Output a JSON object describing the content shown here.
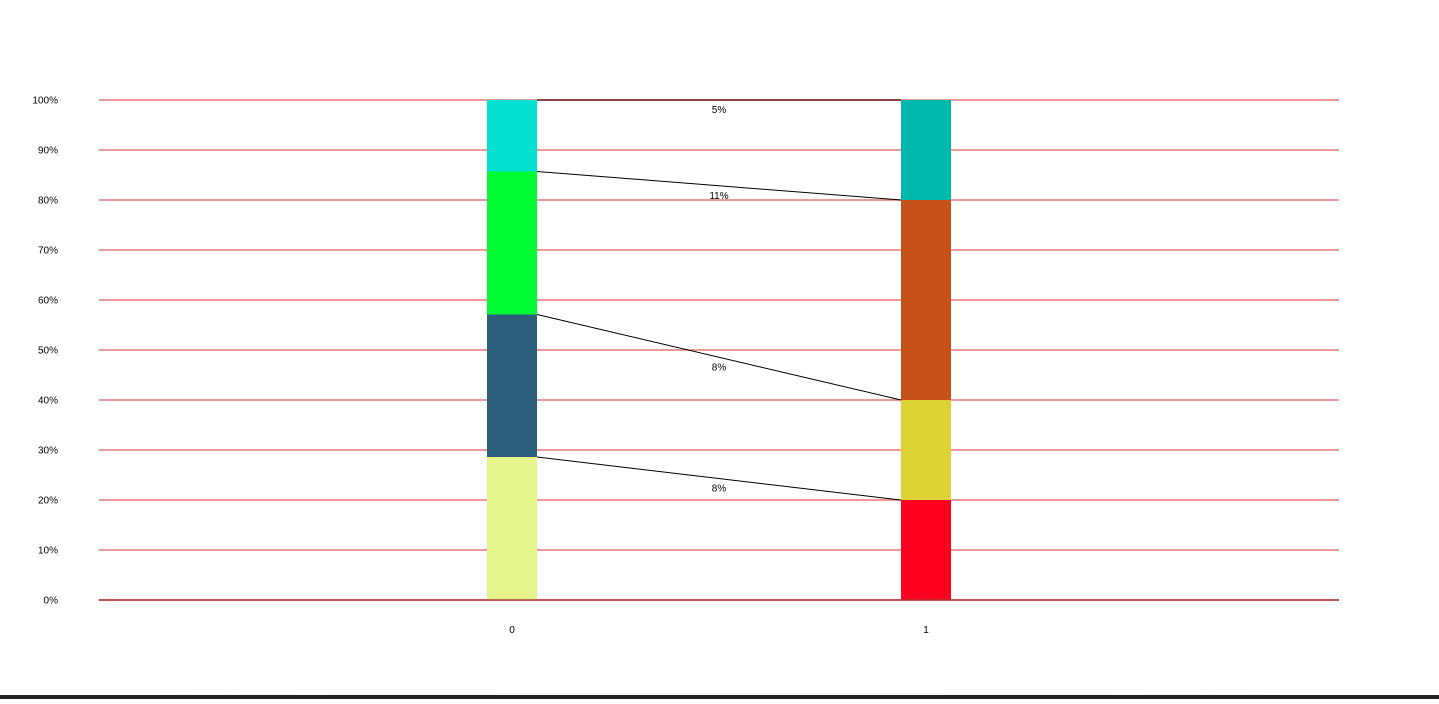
{
  "chart_data": {
    "type": "bar",
    "stacked": true,
    "normalized": true,
    "categories": [
      "0",
      "1"
    ],
    "y_ticks": [
      "0%",
      "10%",
      "20%",
      "30%",
      "40%",
      "50%",
      "60%",
      "70%",
      "80%",
      "90%",
      "100%"
    ],
    "ylim": [
      0,
      100
    ],
    "grid": true,
    "grid_color": "#e87878",
    "bars": [
      {
        "category": "0",
        "segments": [
          {
            "from": 0,
            "to": 28.6,
            "color": "#e6f58c"
          },
          {
            "from": 28.6,
            "to": 57.1,
            "color": "#2b5f7a"
          },
          {
            "from": 57.1,
            "to": 85.7,
            "color": "#00fb33"
          },
          {
            "from": 85.7,
            "to": 100,
            "color": "#00e1d2"
          }
        ]
      },
      {
        "category": "1",
        "segments": [
          {
            "from": 0,
            "to": 20,
            "color": "#ff0020"
          },
          {
            "from": 20,
            "to": 40,
            "color": "#dcd135"
          },
          {
            "from": 40,
            "to": 80,
            "color": "#c65118"
          },
          {
            "from": 80,
            "to": 100,
            "color": "#00b8ab"
          }
        ]
      }
    ],
    "connectors": [
      {
        "from": 28.6,
        "to": 20,
        "label": "8%"
      },
      {
        "from": 57.1,
        "to": 40,
        "label": "8%"
      },
      {
        "from": 85.7,
        "to": 80,
        "label": "11%"
      },
      {
        "from": 100,
        "to": 100,
        "label": "5%"
      }
    ]
  }
}
